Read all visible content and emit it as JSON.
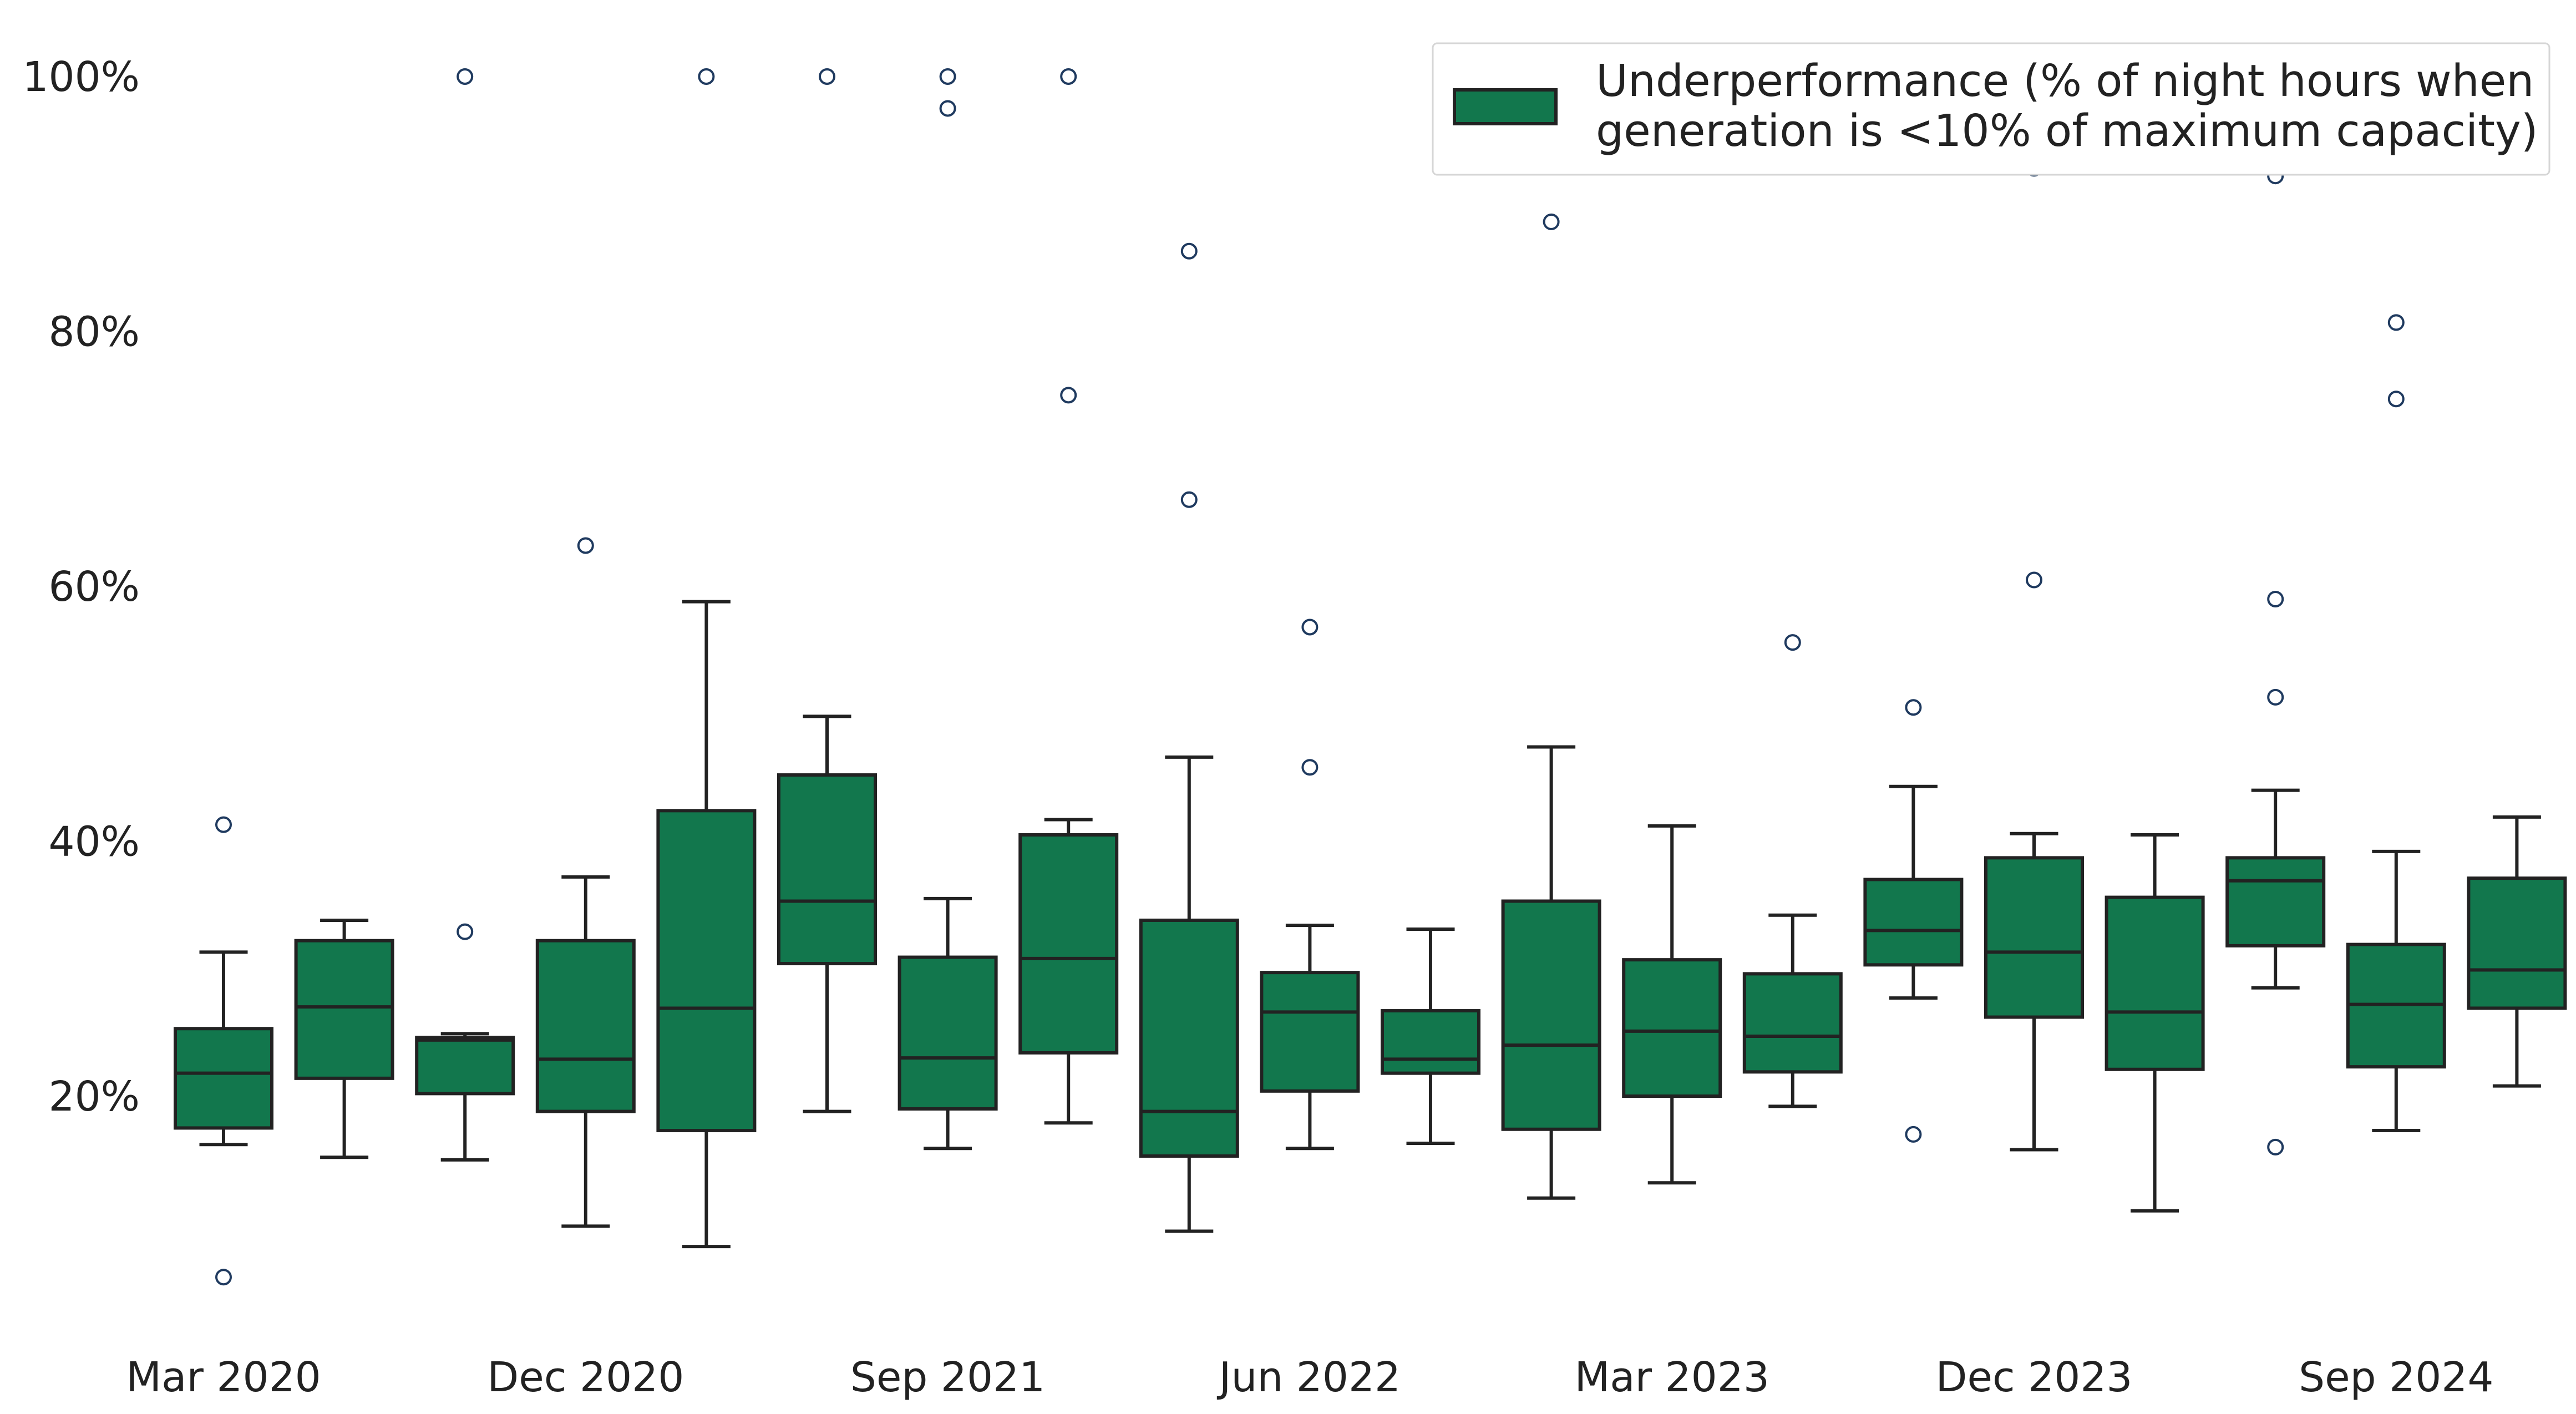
{
  "chart_data": {
    "type": "box",
    "title": "",
    "xlabel": "",
    "ylabel": "",
    "ylim": [
      0,
      100
    ],
    "y_unit": "%",
    "y_ticks": [
      20,
      40,
      60,
      80,
      100
    ],
    "y_tick_labels": [
      "20%",
      "40%",
      "60%",
      "80%",
      "100%"
    ],
    "x_tick_labels": [
      {
        "label": "Mar 2020",
        "index": 0
      },
      {
        "label": "Dec 2020",
        "index": 3
      },
      {
        "label": "Sep 2021",
        "index": 6
      },
      {
        "label": "Jun 2022",
        "index": 9
      },
      {
        "label": "Mar 2023",
        "index": 12
      },
      {
        "label": "Dec 2023",
        "index": 15
      },
      {
        "label": "Sep 2024",
        "index": 18
      }
    ],
    "grid": false,
    "legend": {
      "position": "top-right",
      "entries": [
        {
          "label_line1": "Underperformance (% of night hours when",
          "label_line2": "generation is <10% of maximum capacity)"
        }
      ]
    },
    "colors": {
      "box_fill": "#12774D",
      "box_edge": "#222222",
      "outlier_edge": "#1F3A5F"
    },
    "series": [
      {
        "name": "Underperformance (% of night hours when generation is <10% of maximum capacity)",
        "boxes": [
          {
            "whislo": 16.2,
            "q1": 17.5,
            "med": 21.8,
            "q3": 25.3,
            "whishi": 31.3,
            "fliers": [
              41.3,
              5.8
            ]
          },
          {
            "whislo": 15.2,
            "q1": 21.4,
            "med": 27.0,
            "q3": 32.2,
            "whishi": 33.8,
            "fliers": []
          },
          {
            "whislo": 15.0,
            "q1": 20.2,
            "med": 24.4,
            "q3": 24.6,
            "whishi": 24.9,
            "fliers": [
              100.0,
              32.9
            ]
          },
          {
            "whislo": 9.8,
            "q1": 18.8,
            "med": 22.9,
            "q3": 32.2,
            "whishi": 37.2,
            "fliers": [
              63.2
            ]
          },
          {
            "whislo": 8.2,
            "q1": 17.3,
            "med": 26.9,
            "q3": 42.4,
            "whishi": 58.8,
            "fliers": [
              100.0
            ]
          },
          {
            "whislo": 18.8,
            "q1": 30.4,
            "med": 35.3,
            "q3": 45.2,
            "whishi": 49.8,
            "fliers": [
              100.0
            ]
          },
          {
            "whislo": 15.9,
            "q1": 19.0,
            "med": 23.0,
            "q3": 30.9,
            "whishi": 35.5,
            "fliers": [
              100.0,
              97.5
            ]
          },
          {
            "whislo": 17.9,
            "q1": 23.4,
            "med": 30.8,
            "q3": 40.5,
            "whishi": 41.7,
            "fliers": [
              100.0,
              75.0
            ]
          },
          {
            "whislo": 9.4,
            "q1": 15.3,
            "med": 18.8,
            "q3": 33.8,
            "whishi": 46.6,
            "fliers": [
              86.3,
              66.8
            ]
          },
          {
            "whislo": 15.9,
            "q1": 20.4,
            "med": 26.6,
            "q3": 29.7,
            "whishi": 33.4,
            "fliers": [
              56.8,
              45.8
            ]
          },
          {
            "whislo": 16.3,
            "q1": 21.8,
            "med": 22.9,
            "q3": 26.7,
            "whishi": 33.1,
            "fliers": []
          },
          {
            "whislo": 12.0,
            "q1": 17.4,
            "med": 24.0,
            "q3": 35.3,
            "whishi": 47.4,
            "fliers": [
              88.6
            ]
          },
          {
            "whislo": 13.2,
            "q1": 20.0,
            "med": 25.1,
            "q3": 30.7,
            "whishi": 41.2,
            "fliers": []
          },
          {
            "whislo": 19.2,
            "q1": 21.9,
            "med": 24.7,
            "q3": 29.6,
            "whishi": 34.2,
            "fliers": [
              55.6
            ]
          },
          {
            "whislo": 27.7,
            "q1": 30.3,
            "med": 33.0,
            "q3": 37.0,
            "whishi": 44.3,
            "fliers": [
              50.5,
              17.0
            ]
          },
          {
            "whislo": 15.8,
            "q1": 26.2,
            "med": 31.3,
            "q3": 38.7,
            "whishi": 40.6,
            "fliers": [
              92.8,
              60.5
            ]
          },
          {
            "whislo": 11.0,
            "q1": 22.1,
            "med": 26.6,
            "q3": 35.6,
            "whishi": 40.5,
            "fliers": []
          },
          {
            "whislo": 28.5,
            "q1": 31.8,
            "med": 36.9,
            "q3": 38.7,
            "whishi": 44.0,
            "fliers": [
              92.2,
              59.0,
              51.3,
              16.0
            ]
          },
          {
            "whislo": 17.3,
            "q1": 22.3,
            "med": 27.2,
            "q3": 31.9,
            "whishi": 39.2,
            "fliers": [
              80.7,
              74.7
            ]
          },
          {
            "whislo": 20.8,
            "q1": 26.9,
            "med": 29.9,
            "q3": 37.1,
            "whishi": 41.9,
            "fliers": []
          }
        ]
      }
    ]
  }
}
